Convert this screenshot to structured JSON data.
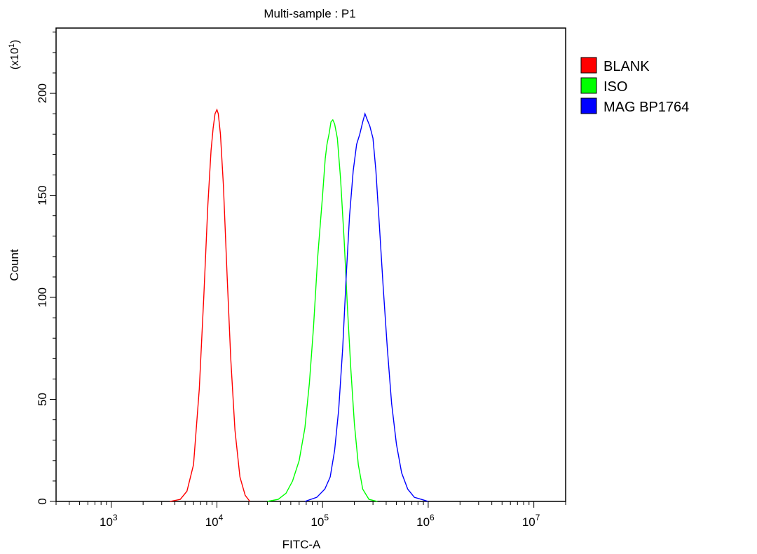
{
  "chart_data": {
    "type": "line",
    "title": "Multi-sample : P1",
    "xlabel": "FITC-A",
    "ylabel": "Count",
    "y_scale_note": "(x10",
    "y_scale_exp": "1",
    "x_scale": "log",
    "xlim": [
      300,
      20000000
    ],
    "ylim": [
      0,
      232
    ],
    "grid": false,
    "legend_position": "right",
    "x_ticks": [
      {
        "value": 1000,
        "base": "10",
        "exp": "3"
      },
      {
        "value": 10000,
        "base": "10",
        "exp": "4"
      },
      {
        "value": 100000,
        "base": "10",
        "exp": "5"
      },
      {
        "value": 1000000,
        "base": "10",
        "exp": "6"
      },
      {
        "value": 10000000,
        "base": "10",
        "exp": "7"
      }
    ],
    "y_ticks": [
      {
        "value": 0,
        "label": "0"
      },
      {
        "value": 50,
        "label": "50"
      },
      {
        "value": 100,
        "label": "100"
      },
      {
        "value": 150,
        "label": "150"
      },
      {
        "value": 200,
        "label": "200"
      }
    ],
    "series": [
      {
        "name": "BLANK",
        "color": "#ff0000",
        "points": [
          [
            3600,
            0
          ],
          [
            4500,
            1
          ],
          [
            5200,
            5
          ],
          [
            6000,
            18
          ],
          [
            6800,
            55
          ],
          [
            7500,
            100
          ],
          [
            8200,
            145
          ],
          [
            8800,
            172
          ],
          [
            9200,
            183
          ],
          [
            9600,
            190
          ],
          [
            10000,
            192
          ],
          [
            10300,
            190
          ],
          [
            10800,
            180
          ],
          [
            11500,
            155
          ],
          [
            12500,
            110
          ],
          [
            13500,
            70
          ],
          [
            14800,
            35
          ],
          [
            16500,
            12
          ],
          [
            18500,
            3
          ],
          [
            20500,
            0
          ]
        ]
      },
      {
        "name": "ISO",
        "color": "#00ff00",
        "points": [
          [
            30000,
            0
          ],
          [
            38000,
            1
          ],
          [
            45000,
            4
          ],
          [
            52000,
            10
          ],
          [
            60000,
            20
          ],
          [
            68000,
            36
          ],
          [
            75000,
            58
          ],
          [
            82000,
            85
          ],
          [
            90000,
            120
          ],
          [
            100000,
            150
          ],
          [
            106000,
            168
          ],
          [
            110000,
            175
          ],
          [
            115000,
            180
          ],
          [
            120000,
            186
          ],
          [
            125000,
            187
          ],
          [
            130000,
            185
          ],
          [
            138000,
            178
          ],
          [
            148000,
            158
          ],
          [
            160000,
            128
          ],
          [
            172000,
            95
          ],
          [
            185000,
            65
          ],
          [
            200000,
            38
          ],
          [
            218000,
            18
          ],
          [
            240000,
            6
          ],
          [
            275000,
            1
          ],
          [
            330000,
            0
          ]
        ]
      },
      {
        "name": "MAG BP1764",
        "color": "#0000ff",
        "points": [
          [
            68000,
            0
          ],
          [
            88000,
            2
          ],
          [
            105000,
            6
          ],
          [
            118000,
            12
          ],
          [
            130000,
            25
          ],
          [
            142000,
            45
          ],
          [
            155000,
            75
          ],
          [
            168000,
            112
          ],
          [
            180000,
            140
          ],
          [
            195000,
            162
          ],
          [
            210000,
            175
          ],
          [
            225000,
            180
          ],
          [
            240000,
            186
          ],
          [
            252000,
            190
          ],
          [
            265000,
            187
          ],
          [
            280000,
            184
          ],
          [
            300000,
            178
          ],
          [
            320000,
            162
          ],
          [
            345000,
            135
          ],
          [
            375000,
            105
          ],
          [
            410000,
            75
          ],
          [
            450000,
            48
          ],
          [
            500000,
            28
          ],
          [
            560000,
            14
          ],
          [
            640000,
            6
          ],
          [
            740000,
            2
          ],
          [
            860000,
            1
          ],
          [
            1000000,
            0
          ]
        ]
      }
    ]
  }
}
